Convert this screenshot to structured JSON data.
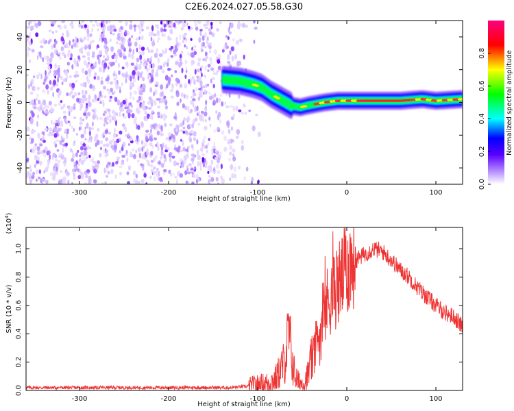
{
  "title": "C2E6.2024.027.05.58.G30",
  "chart_data": [
    {
      "type": "heatmap",
      "xlabel": "Height of straight line (km)",
      "ylabel": "Frequency (Hz)",
      "xlim": [
        -360,
        130
      ],
      "ylim": [
        -50,
        50
      ],
      "xticks": [
        -300,
        -200,
        -100,
        0,
        100
      ],
      "xtick_labels": [
        "-300",
        "-200",
        "-100",
        "0",
        "100"
      ],
      "yticks": [
        -40,
        -20,
        0,
        20,
        40
      ],
      "ytick_labels": [
        "-40",
        "-20",
        "0",
        "20",
        "40"
      ],
      "colormap": [
        "#ffffff",
        "#7a00ff",
        "#0000ff",
        "#00ffff",
        "#00ff00",
        "#ffff00",
        "#ff0000",
        "#ff00c8"
      ],
      "colorbar": {
        "label": "Normalized spectral amplitude",
        "range": [
          0,
          1
        ],
        "ticks": [
          0,
          0.2,
          0.4,
          0.6,
          0.8
        ],
        "tick_labels": [
          "0.0",
          "0.2",
          "0.4",
          "0.6",
          "0.8"
        ]
      },
      "ridge": {
        "description_x": [
          -140,
          -120,
          -105,
          -95,
          -85,
          -75,
          -62,
          -52,
          -45,
          -35,
          -25,
          -10,
          0,
          20,
          60,
          85,
          100,
          130
        ],
        "frequency_y": [
          14,
          13,
          11,
          9,
          5,
          2,
          -2,
          -3,
          -2,
          -1,
          0,
          1,
          1,
          1,
          1,
          2,
          1,
          2
        ],
        "amplitude": [
          0.35,
          0.45,
          0.5,
          0.5,
          0.55,
          0.5,
          0.45,
          0.5,
          0.55,
          0.6,
          0.6,
          0.65,
          0.75,
          0.9,
          0.9,
          0.8,
          0.7,
          0.7
        ]
      },
      "noise_region_x": [
        -360,
        -100
      ]
    },
    {
      "type": "line",
      "xlabel": "Height of straight line (km)",
      "ylabel": "SNR (10 * v/v)",
      "yscale_label": "(x10",
      "yscale_exp": "4",
      "yscale_close": ")",
      "xlim": [
        -360,
        130
      ],
      "ylim": [
        0,
        1.15
      ],
      "xticks": [
        -300,
        -200,
        -100,
        0,
        100
      ],
      "xtick_labels": [
        "-300",
        "-200",
        "-100",
        "0",
        "100"
      ],
      "yticks": [
        0,
        0.2,
        0.4,
        0.6,
        0.8,
        1.0
      ],
      "ytick_labels": [
        "0.0",
        "0.2",
        "0.4",
        "0.6",
        "0.8",
        "1.0"
      ],
      "series_color": "#ee3333",
      "series": [
        {
          "x": [
            -360,
            -300,
            -200,
            -130,
            -110,
            -100,
            -90,
            -80,
            -70,
            -65,
            -60,
            -55,
            -50,
            -45,
            -40,
            -35,
            -30,
            -25,
            -20,
            -15,
            -10,
            -5,
            0,
            5,
            10,
            20,
            30,
            40,
            50,
            60,
            70,
            80,
            90,
            100,
            110,
            120,
            130
          ],
          "values": [
            0.02,
            0.02,
            0.02,
            0.02,
            0.03,
            0.04,
            0.05,
            0.08,
            0.2,
            0.4,
            0.15,
            0.06,
            0.05,
            0.08,
            0.2,
            0.3,
            0.4,
            0.55,
            0.65,
            0.7,
            0.75,
            0.8,
            0.85,
            0.9,
            0.92,
            0.96,
            1.0,
            0.98,
            0.92,
            0.85,
            0.8,
            0.72,
            0.66,
            0.6,
            0.55,
            0.52,
            0.45
          ]
        }
      ]
    }
  ]
}
